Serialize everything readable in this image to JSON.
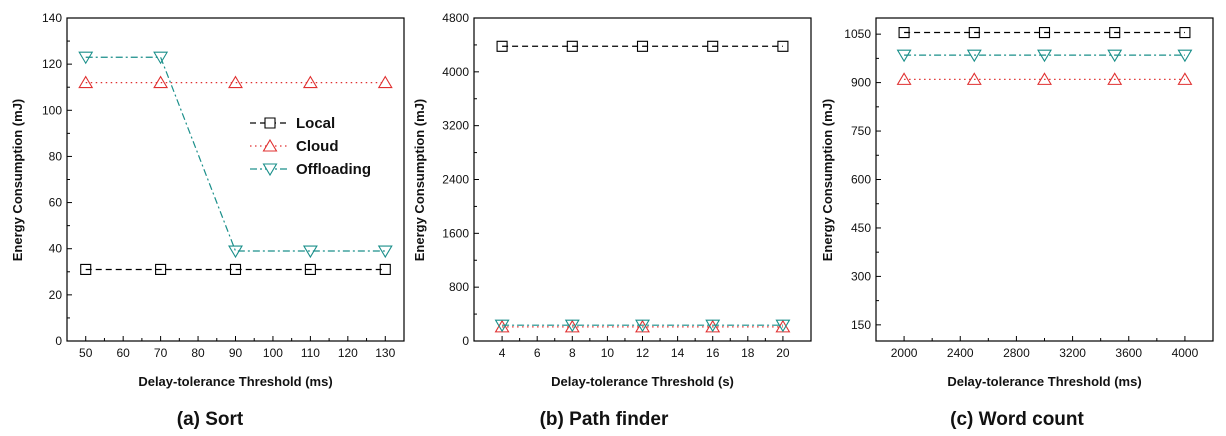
{
  "chart_data": [
    {
      "type": "line",
      "caption": "(a) Sort",
      "xlabel": "Delay-tolerance Threshold (ms)",
      "ylabel": "Energy Consumption (mJ)",
      "x": [
        50,
        70,
        90,
        110,
        130
      ],
      "xticks": [
        50,
        60,
        70,
        80,
        90,
        100,
        110,
        120,
        130
      ],
      "xlim": [
        45,
        135
      ],
      "yticks": [
        0,
        20,
        40,
        60,
        80,
        100,
        120,
        140
      ],
      "ylim": [
        0,
        140
      ],
      "legend_position": "center-right",
      "series": [
        {
          "name": "Local",
          "values": [
            31,
            31,
            31,
            31,
            31
          ],
          "color": "#000000",
          "marker": "square",
          "dash": "6,4"
        },
        {
          "name": "Cloud",
          "values": [
            112,
            112,
            112,
            112,
            112
          ],
          "color": "#e03030",
          "marker": "triangle-up",
          "dash": "1.5,3.5"
        },
        {
          "name": "Offloading",
          "values": [
            123,
            123,
            39,
            39,
            39
          ],
          "color": "#1a8f8a",
          "marker": "triangle-down",
          "dash": "7,3,2,3"
        }
      ]
    },
    {
      "type": "line",
      "caption": "(b) Path finder",
      "xlabel": "Delay-tolerance Threshold (s)",
      "ylabel": "Energy Consumption (mJ)",
      "x": [
        4,
        8,
        12,
        16,
        20
      ],
      "xticks": [
        4,
        6,
        8,
        10,
        12,
        14,
        16,
        18,
        20
      ],
      "xlim": [
        2.4,
        21.6
      ],
      "yticks": [
        0,
        800,
        1600,
        2400,
        3200,
        4000,
        4800
      ],
      "ylim": [
        0,
        4800
      ],
      "series": [
        {
          "name": "Local",
          "values": [
            4380,
            4380,
            4380,
            4380,
            4380
          ],
          "color": "#000000",
          "marker": "square",
          "dash": "6,4"
        },
        {
          "name": "Cloud",
          "values": [
            210,
            210,
            210,
            210,
            210
          ],
          "color": "#e03030",
          "marker": "triangle-up",
          "dash": "1.5,3.5"
        },
        {
          "name": "Offloading",
          "values": [
            235,
            235,
            235,
            235,
            235
          ],
          "color": "#1a8f8a",
          "marker": "triangle-down",
          "dash": "7,3,2,3"
        }
      ]
    },
    {
      "type": "line",
      "caption": "(c) Word count",
      "xlabel": "Delay-tolerance Threshold (ms)",
      "ylabel": "Energy Consumption (mJ)",
      "x": [
        2000,
        2500,
        3000,
        3500,
        4000
      ],
      "xticks": [
        2000,
        2400,
        2800,
        3200,
        3600,
        4000
      ],
      "xlim": [
        1800,
        4200
      ],
      "yticks": [
        150,
        300,
        450,
        600,
        750,
        900,
        1050
      ],
      "ylim": [
        100,
        1100
      ],
      "series": [
        {
          "name": "Local",
          "values": [
            1055,
            1055,
            1055,
            1055,
            1055
          ],
          "color": "#000000",
          "marker": "square",
          "dash": "6,4"
        },
        {
          "name": "Cloud",
          "values": [
            910,
            910,
            910,
            910,
            910
          ],
          "color": "#e03030",
          "marker": "triangle-up",
          "dash": "1.5,3.5"
        },
        {
          "name": "Offloading",
          "values": [
            985,
            985,
            985,
            985,
            985
          ],
          "color": "#1a8f8a",
          "marker": "triangle-down",
          "dash": "7,3,2,3"
        }
      ]
    }
  ]
}
